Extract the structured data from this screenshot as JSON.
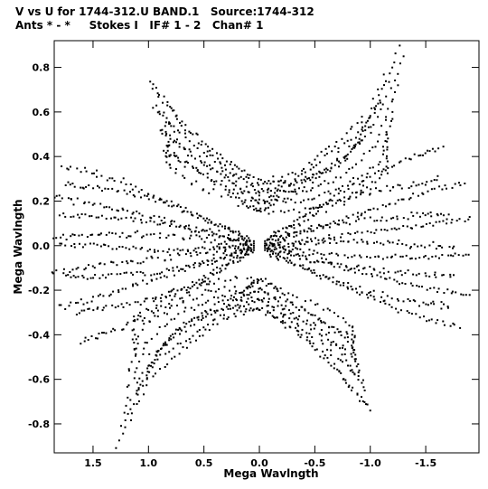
{
  "chart_data": {
    "type": "scatter",
    "title": "V vs U for 1744-312.U BAND.1   Source:1744-312",
    "subtitle": "Ants * - *     Stokes I   IF# 1 - 2   Chan# 1",
    "xlabel": "Mega Wavlngth",
    "ylabel": "Mega Wavlngth",
    "xlim": [
      1.85,
      -1.98
    ],
    "ylim": [
      -0.93,
      0.92
    ],
    "x_ticks": [
      1.5,
      1.0,
      0.5,
      0.0,
      -0.5,
      -1.0,
      -1.5
    ],
    "x_tick_labels": [
      "1.5",
      "1.0",
      "0.5",
      "0.0",
      "-0.5",
      "-1.0",
      "-1.5"
    ],
    "y_ticks": [
      0.8,
      0.6,
      0.4,
      0.2,
      0.0,
      -0.2,
      -0.4,
      -0.6,
      -0.8
    ],
    "y_tick_labels": [
      "0.8",
      "0.6",
      "0.4",
      "0.2",
      "0.0",
      "-0.2",
      "-0.4",
      "-0.6",
      "-0.8"
    ],
    "grid": false,
    "marker_color": "#000000",
    "tracks": [
      {
        "name": "arc-top-1",
        "points": [
          [
            0.98,
            0.74
          ],
          [
            0.7,
            0.55
          ],
          [
            0.35,
            0.4
          ],
          [
            0.05,
            0.3
          ],
          [
            -0.3,
            0.28
          ],
          [
            -0.65,
            0.35
          ],
          [
            -1.0,
            0.5
          ],
          [
            -1.3,
            0.85
          ]
        ]
      },
      {
        "name": "arc-top-2",
        "points": [
          [
            0.95,
            0.62
          ],
          [
            0.65,
            0.48
          ],
          [
            0.3,
            0.34
          ],
          [
            0.0,
            0.25
          ],
          [
            -0.35,
            0.24
          ],
          [
            -0.7,
            0.3
          ],
          [
            -1.05,
            0.45
          ],
          [
            -1.25,
            0.72
          ]
        ]
      },
      {
        "name": "arc-top-3",
        "points": [
          [
            0.9,
            0.52
          ],
          [
            0.6,
            0.4
          ],
          [
            0.25,
            0.28
          ],
          [
            0.0,
            0.2
          ],
          [
            -0.4,
            0.2
          ],
          [
            -0.75,
            0.26
          ],
          [
            -1.1,
            0.38
          ],
          [
            -1.2,
            0.6
          ]
        ]
      },
      {
        "name": "arc-top-4",
        "points": [
          [
            0.85,
            0.42
          ],
          [
            0.55,
            0.34
          ],
          [
            0.2,
            0.22
          ],
          [
            0.0,
            0.15
          ],
          [
            -0.45,
            0.16
          ],
          [
            -0.8,
            0.22
          ],
          [
            -1.15,
            0.32
          ],
          [
            -1.15,
            0.5
          ]
        ]
      },
      {
        "name": "arc-bot-1",
        "points": [
          [
            1.28,
            -0.9
          ],
          [
            1.0,
            -0.6
          ],
          [
            0.65,
            -0.45
          ],
          [
            0.3,
            -0.32
          ],
          [
            0.0,
            -0.28
          ],
          [
            -0.35,
            -0.38
          ],
          [
            -0.7,
            -0.55
          ],
          [
            -1.0,
            -0.74
          ]
        ]
      },
      {
        "name": "arc-bot-2",
        "points": [
          [
            1.2,
            -0.78
          ],
          [
            0.95,
            -0.52
          ],
          [
            0.6,
            -0.4
          ],
          [
            0.25,
            -0.28
          ],
          [
            0.0,
            -0.24
          ],
          [
            -0.4,
            -0.34
          ],
          [
            -0.75,
            -0.48
          ],
          [
            -0.95,
            -0.65
          ]
        ]
      },
      {
        "name": "arc-bot-3",
        "points": [
          [
            1.1,
            -0.66
          ],
          [
            0.9,
            -0.46
          ],
          [
            0.55,
            -0.34
          ],
          [
            0.2,
            -0.24
          ],
          [
            0.0,
            -0.2
          ],
          [
            -0.45,
            -0.3
          ],
          [
            -0.8,
            -0.42
          ],
          [
            -0.9,
            -0.56
          ]
        ]
      },
      {
        "name": "arc-bot-4",
        "points": [
          [
            1.0,
            -0.56
          ],
          [
            0.8,
            -0.4
          ],
          [
            0.5,
            -0.3
          ],
          [
            0.15,
            -0.2
          ],
          [
            0.0,
            -0.16
          ],
          [
            -0.5,
            -0.26
          ],
          [
            -0.85,
            -0.36
          ],
          [
            -0.85,
            -0.48
          ]
        ]
      },
      {
        "name": "wing-left-1",
        "points": [
          [
            1.75,
            0.28
          ],
          [
            1.5,
            0.26
          ],
          [
            1.2,
            0.24
          ],
          [
            0.9,
            0.2
          ],
          [
            0.6,
            0.14
          ],
          [
            0.3,
            0.08
          ],
          [
            0.05,
            0.02
          ]
        ]
      },
      {
        "name": "wing-left-2",
        "points": [
          [
            1.8,
            0.14
          ],
          [
            1.5,
            0.13
          ],
          [
            1.2,
            0.12
          ],
          [
            0.9,
            0.1
          ],
          [
            0.6,
            0.07
          ],
          [
            0.3,
            0.04
          ],
          [
            0.05,
            0.01
          ]
        ]
      },
      {
        "name": "wing-left-3",
        "points": [
          [
            1.8,
            0.0
          ],
          [
            1.5,
            0.0
          ],
          [
            1.2,
            -0.01
          ],
          [
            0.9,
            -0.02
          ],
          [
            0.6,
            -0.02
          ],
          [
            0.3,
            -0.01
          ],
          [
            0.05,
            0.0
          ]
        ]
      },
      {
        "name": "wing-left-4",
        "points": [
          [
            1.75,
            -0.14
          ],
          [
            1.5,
            -0.14
          ],
          [
            1.2,
            -0.13
          ],
          [
            0.9,
            -0.12
          ],
          [
            0.6,
            -0.09
          ],
          [
            0.3,
            -0.05
          ],
          [
            0.05,
            -0.01
          ]
        ]
      },
      {
        "name": "wing-left-5",
        "points": [
          [
            1.65,
            -0.3
          ],
          [
            1.4,
            -0.28
          ],
          [
            1.1,
            -0.26
          ],
          [
            0.85,
            -0.22
          ],
          [
            0.55,
            -0.16
          ],
          [
            0.3,
            -0.08
          ],
          [
            0.05,
            -0.02
          ]
        ]
      },
      {
        "name": "wing-right-1",
        "points": [
          [
            -1.65,
            0.44
          ],
          [
            -1.4,
            0.4
          ],
          [
            -1.1,
            0.34
          ],
          [
            -0.8,
            0.26
          ],
          [
            -0.5,
            0.17
          ],
          [
            -0.25,
            0.08
          ],
          [
            -0.05,
            0.02
          ]
        ]
      },
      {
        "name": "wing-right-2",
        "points": [
          [
            -1.85,
            0.28
          ],
          [
            -1.55,
            0.25
          ],
          [
            -1.25,
            0.2
          ],
          [
            -0.95,
            0.15
          ],
          [
            -0.6,
            0.1
          ],
          [
            -0.3,
            0.05
          ],
          [
            -0.05,
            0.01
          ]
        ]
      },
      {
        "name": "wing-right-3",
        "points": [
          [
            -1.9,
            0.12
          ],
          [
            -1.6,
            0.1
          ],
          [
            -1.3,
            0.08
          ],
          [
            -1.0,
            0.06
          ],
          [
            -0.65,
            0.04
          ],
          [
            -0.35,
            0.02
          ],
          [
            -0.05,
            0.0
          ]
        ]
      },
      {
        "name": "wing-right-4",
        "points": [
          [
            -1.9,
            -0.04
          ],
          [
            -1.6,
            -0.05
          ],
          [
            -1.3,
            -0.05
          ],
          [
            -1.0,
            -0.05
          ],
          [
            -0.65,
            -0.04
          ],
          [
            -0.35,
            -0.02
          ],
          [
            -0.05,
            0.0
          ]
        ]
      },
      {
        "name": "wing-right-5",
        "points": [
          [
            -1.9,
            -0.22
          ],
          [
            -1.6,
            -0.2
          ],
          [
            -1.3,
            -0.17
          ],
          [
            -1.0,
            -0.13
          ],
          [
            -0.65,
            -0.09
          ],
          [
            -0.35,
            -0.05
          ],
          [
            -0.05,
            -0.01
          ]
        ]
      },
      {
        "name": "wing-right-6",
        "points": [
          [
            -1.8,
            -0.36
          ],
          [
            -1.5,
            -0.33
          ],
          [
            -1.2,
            -0.28
          ],
          [
            -0.9,
            -0.21
          ],
          [
            -0.6,
            -0.14
          ],
          [
            -0.3,
            -0.07
          ],
          [
            -0.05,
            -0.02
          ]
        ]
      }
    ]
  }
}
